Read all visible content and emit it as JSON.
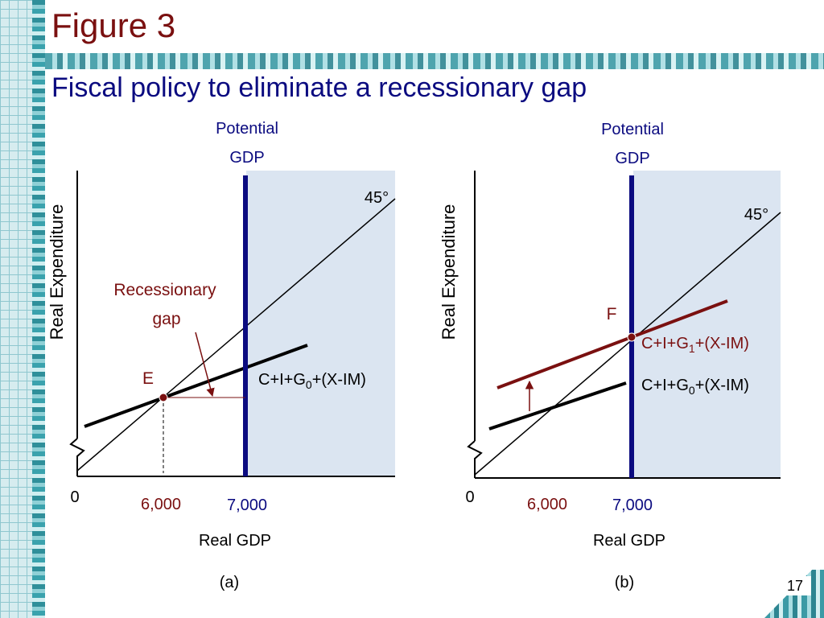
{
  "slide": {
    "figure_title": "Figure 3",
    "subtitle": "Fiscal policy to eliminate a recessionary gap",
    "page_number": "17"
  },
  "colors": {
    "title": "#7a1010",
    "subtitle": "#0b0b80",
    "potential_line": "#0b0b80",
    "shade": "#dbe5f1",
    "dark_red": "#7a1010",
    "black": "#000000"
  },
  "chart_data": [
    {
      "type": "line",
      "panel_label": "(a)",
      "xlabel": "Real GDP",
      "ylabel": "Real Expenditure",
      "x_ticks": [
        {
          "value": 6000,
          "label": "6,000",
          "color": "#7a1010"
        },
        {
          "value": 7000,
          "label": "7,000",
          "color": "#0b0b80"
        }
      ],
      "origin_label": "0",
      "potential_label": [
        "Potential",
        "GDP"
      ],
      "potential_x": 7000,
      "series": [
        {
          "name": "45°",
          "kind": "45-degree"
        },
        {
          "name": "C+I+G0+(X-IM)",
          "subscript": "0",
          "prefix": "C+I+G",
          "suffix": "+(X-IM)"
        }
      ],
      "equilibrium": {
        "label": "E",
        "x": 6000
      },
      "annotation": [
        "Recessionary",
        "gap"
      ]
    },
    {
      "type": "line",
      "panel_label": "(b)",
      "xlabel": "Real GDP",
      "ylabel": "Real Expenditure",
      "x_ticks": [
        {
          "value": 6000,
          "label": "6,000",
          "color": "#7a1010"
        },
        {
          "value": 7000,
          "label": "7,000",
          "color": "#0b0b80"
        }
      ],
      "origin_label": "0",
      "potential_label": [
        "Potential",
        "GDP"
      ],
      "potential_x": 7000,
      "series": [
        {
          "name": "45°",
          "kind": "45-degree"
        },
        {
          "name": "C+I+G1+(X-IM)",
          "subscript": "1",
          "prefix": "C+I+G",
          "suffix": "+(X-IM)"
        },
        {
          "name": "C+I+G0+(X-IM)",
          "subscript": "0",
          "prefix": "C+I+G",
          "suffix": "+(X-IM)"
        }
      ],
      "equilibrium": {
        "label": "F",
        "x": 7000
      }
    }
  ]
}
